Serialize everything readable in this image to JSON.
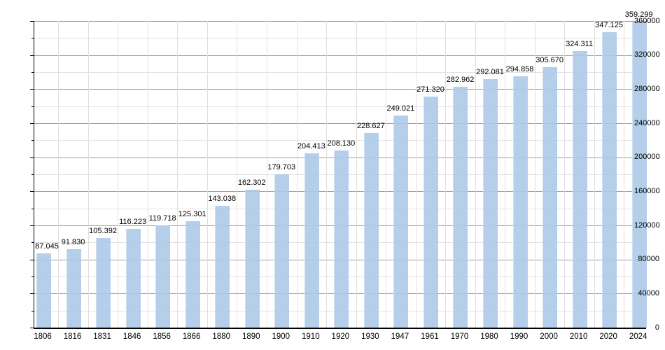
{
  "chart_data": {
    "type": "bar",
    "title": "",
    "xlabel": "",
    "ylabel": "",
    "categories": [
      "1806",
      "1816",
      "1831",
      "1846",
      "1856",
      "1866",
      "1880",
      "1890",
      "1900",
      "1910",
      "1920",
      "1930",
      "1947",
      "1961",
      "1970",
      "1980",
      "1990",
      "2000",
      "2010",
      "2020",
      "2024"
    ],
    "values": [
      87045,
      91830,
      105392,
      116223,
      119718,
      125301,
      143038,
      162302,
      179703,
      204413,
      208130,
      228627,
      249021,
      271320,
      282962,
      292081,
      294858,
      305670,
      324311,
      347125,
      359299
    ],
    "value_labels": [
      "87.045",
      "91.830",
      "105.392",
      "116.223",
      "119.718",
      "125.301",
      "143.038",
      "162.302",
      "179.703",
      "204.413",
      "208.130",
      "228.627",
      "249.021",
      "271.320",
      "282.962",
      "292.081",
      "294.858",
      "305.670",
      "324.311",
      "347.125",
      "359.299"
    ],
    "ylim": [
      0,
      360000
    ],
    "y_major_step": 40000,
    "y_minor_step": 20000,
    "y_tick_labels": [
      "0",
      "40000",
      "80000",
      "120000",
      "160000",
      "200000",
      "240000",
      "280000",
      "320000",
      "360000"
    ],
    "legend": "none",
    "grid": "on",
    "colors": {
      "bar_fill": "rgba(173,201,231,0.9)",
      "bar_edge_highlight": "rgba(210,226,243,0.9)",
      "grid_major": "#9c9c9c",
      "grid_minor": "#e2e2e2",
      "grid_vertical": "#dfdfdf",
      "axis": "#000000",
      "text": "#000000",
      "background": "#ffffff"
    }
  }
}
